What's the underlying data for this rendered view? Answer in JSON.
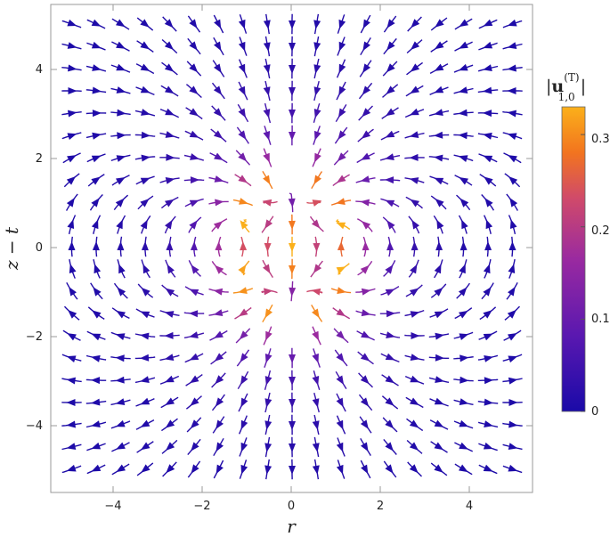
{
  "chart_data": {
    "type": "streamplot",
    "x": {
      "label": "r",
      "range": [
        -5.2,
        5.2
      ],
      "ticks": [
        -4,
        -2,
        0,
        2,
        4
      ]
    },
    "y": {
      "label": "z − t",
      "range": [
        -5.5,
        5.5
      ],
      "ticks": [
        -4,
        -2,
        0,
        2,
        4
      ]
    },
    "x_tick_labels": [
      "−4",
      "−2",
      "0",
      "2",
      "4"
    ],
    "y_tick_labels": [
      "−4",
      "−2",
      "0",
      "2",
      "4"
    ],
    "field": "velocity field u^(T)_{1,0}, colored by magnitude",
    "colorbar": {
      "title_main": "u",
      "title_sup": "(T)",
      "title_sub": "1,0",
      "range": [
        0,
        0.33
      ],
      "ticks": [
        0,
        0.1,
        0.2,
        0.3
      ],
      "tick_labels": [
        "0",
        "0.1",
        "0.2",
        "0.3"
      ],
      "colors": [
        "#1a0aa8",
        "#5a18b0",
        "#9a2aa0",
        "#d04a6a",
        "#f2741f",
        "#fbb01a"
      ]
    }
  }
}
